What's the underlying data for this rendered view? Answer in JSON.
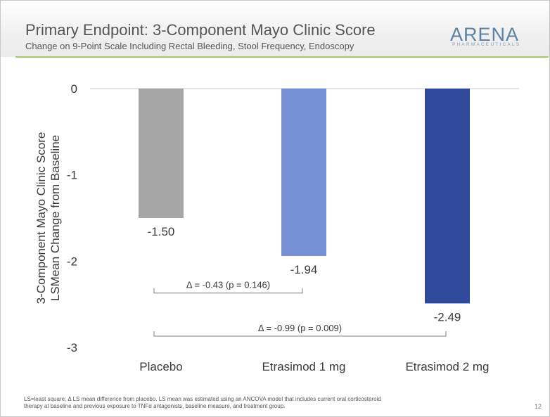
{
  "slide": {
    "title": "Primary Endpoint: 3-Component Mayo Clinic Score",
    "subtitle": "Change on 9-Point Scale Including Rectal Bleeding, Stool Frequency, Endoscopy",
    "logo_text": "ARENA",
    "logo_tagline": "PHARMACEUTICALS",
    "footnote_line1": "LS=least square; Δ LS mean difference from placebo. LS mean was estimated using an ANCOVA model that includes current oral corticosteroid",
    "footnote_line2": "therapy at baseline and previous exposure to TNFα antagonists, baseline measure, and treatment group.",
    "page_number": "12"
  },
  "colors": {
    "accent_green": "#a6cd6c",
    "title_gray": "#555555"
  },
  "chart_data": {
    "type": "bar",
    "categories": [
      "Placebo",
      "Etrasimod 1 mg",
      "Etrasimod 2 mg"
    ],
    "values": [
      -1.5,
      -1.94,
      -2.49
    ],
    "value_labels": [
      "-1.50",
      "-1.94",
      "-2.49"
    ],
    "colors": [
      "#a6a6a6",
      "#7590d4",
      "#2f4a9a"
    ],
    "ylabel": "3-Component Mayo Clinic Score LSMean Change from Baseline",
    "ylabel_line1": "3-Component Mayo Clinic Score",
    "ylabel_line2": "LSMean Change from Baseline",
    "ylim": [
      -3,
      0
    ],
    "yticks": [
      0,
      -1,
      -2,
      -3
    ],
    "ytick_labels": [
      "0",
      "-1",
      "-2",
      "-3"
    ],
    "grid": false,
    "annotations": [
      {
        "text": "Δ = -0.43 (p = 0.146)",
        "from_category": 0,
        "to_category": 1,
        "y_value": -2.37
      },
      {
        "text": "Δ = -0.99 (p = 0.009)",
        "from_category": 0,
        "to_category": 2,
        "y_value": -2.87
      }
    ]
  }
}
